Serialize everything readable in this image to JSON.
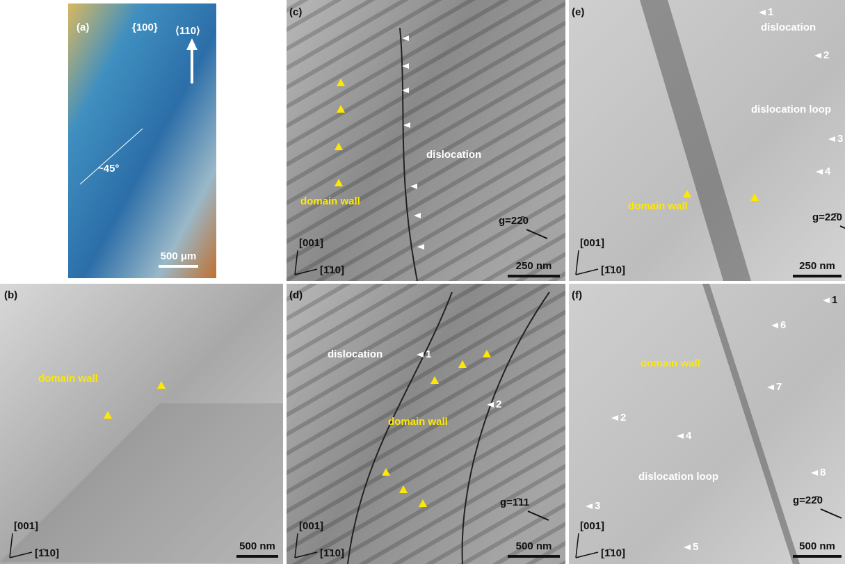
{
  "figure": {
    "panels": [
      {
        "label": "(a)",
        "texts": [
          "{100}",
          "⟨110⟩",
          "~45°"
        ],
        "scale_bar": "500 μm"
      },
      {
        "label": "(b)",
        "texts": [
          "domain wall"
        ],
        "axes": [
          "[001]",
          "[1̄10]"
        ],
        "scale_bar": "500 nm"
      },
      {
        "label": "(c)",
        "texts": [
          "dislocation",
          "domain wall"
        ],
        "g_vector": "g=22̄0",
        "axes": [
          "[001]",
          "[1̄10]"
        ],
        "scale_bar": "250 nm"
      },
      {
        "label": "(d)",
        "texts": [
          "dislocation",
          "1",
          "domain wall",
          "2"
        ],
        "g_vector": "g=1̄11",
        "axes": [
          "[001]",
          "[1̄10]"
        ],
        "scale_bar": "500 nm"
      },
      {
        "label": "(e)",
        "texts": [
          "1",
          "dislocation",
          "2",
          "dislocation loop",
          "3",
          "4",
          "domain wall"
        ],
        "g_vector": "g=22̄0",
        "axes": [
          "[001]",
          "[1̄10]"
        ],
        "scale_bar": "250 nm"
      },
      {
        "label": "(f)",
        "texts": [
          "1",
          "6",
          "domain wall",
          "7",
          "2",
          "4",
          "dislocation loop",
          "8",
          "3",
          "5"
        ],
        "g_vector": "g=22̄0",
        "axes": [
          "[001]",
          "[1̄10]"
        ],
        "scale_bar": "500 nm"
      }
    ]
  }
}
